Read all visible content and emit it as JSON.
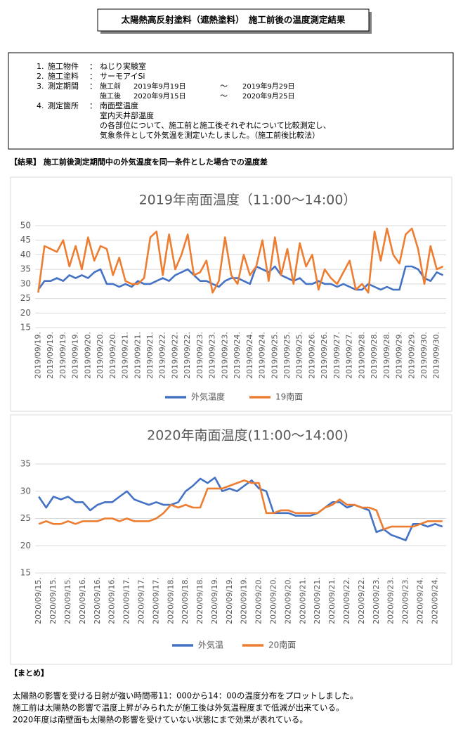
{
  "header": {
    "title": "太陽熱高反射塗料（遮熱塗料）　施工前後の温度測定結果"
  },
  "info": {
    "items": [
      {
        "num": "1.",
        "label": "施工物件",
        "sep": "：",
        "lines": [
          "ねじり実験室"
        ]
      },
      {
        "num": "2.",
        "label": "施工塗料",
        "sep": "：",
        "lines": [
          "サーモアイSi"
        ]
      },
      {
        "num": "3.",
        "label": "測定期間",
        "sep": "：",
        "periods": [
          {
            "label": "施工前",
            "from": "2019年9月19日",
            "sep": "～",
            "to": "2019年9月29日"
          },
          {
            "label": "施工後",
            "from": "2020年9月15日",
            "sep": "～",
            "to": "2020年9月25日"
          }
        ]
      },
      {
        "num": "4.",
        "label": "測定箇所",
        "sep": "：",
        "lines": [
          "南面壁温度",
          "室内天井部温度",
          "の各部位について、施工前と施工後それぞれについて比較測定し、",
          "気象条件として外気温を測定いたしました。（施工前後比較法）"
        ]
      }
    ]
  },
  "result_heading": "【結果】 施工前後測定期間中の外気温度を同一条件とした場合での温度差",
  "chart_data": [
    {
      "type": "line",
      "title": "2019年南面温度（11:00～14:00）",
      "categories": [
        "2019/09/19.",
        null,
        "2019/09/19.",
        null,
        "2019/09/19.",
        null,
        "2019/09/19.",
        null,
        "2019/09/20.",
        null,
        "2019/09/20.",
        null,
        "2019/09/20.",
        null,
        "2019/09/21.",
        null,
        "2019/09/21.",
        null,
        "2019/09/21.",
        null,
        "2019/09/22.",
        null,
        "2019/09/22.",
        null,
        "2019/09/22.",
        null,
        "2019/09/23.",
        null,
        "2019/09/23.",
        null,
        "2019/09/23.",
        null,
        "2019/09/24.",
        null,
        "2019/09/24.",
        null,
        "2019/09/24.",
        null,
        "2019/09/25.",
        null,
        "2019/09/25.",
        null,
        "2019/09/25.",
        null,
        "2019/09/26.",
        null,
        "2019/09/26.",
        null,
        "2019/09/27.",
        null,
        "2019/09/27.",
        null,
        "2019/09/28.",
        null,
        "2019/09/28.",
        null,
        "2019/09/28.",
        null,
        "2019/09/29.",
        null,
        "2019/09/29.",
        null,
        "2019/09/30.",
        null,
        "2019/09/30.",
        null
      ],
      "series": [
        {
          "name": "外気温度",
          "color": "#4472c4",
          "values": [
            28,
            31,
            31,
            32,
            31,
            33,
            32,
            33,
            32,
            34,
            35,
            30,
            30,
            29,
            30,
            29,
            31,
            30,
            30,
            31,
            32,
            31,
            33,
            34,
            35,
            33,
            31,
            31,
            30,
            29,
            31,
            32,
            32,
            31,
            30,
            36,
            35,
            34,
            36,
            33,
            32,
            31,
            32,
            30,
            30,
            31,
            30,
            30,
            29,
            30,
            29,
            28,
            28,
            30,
            29,
            28,
            29,
            28,
            28,
            36,
            36,
            35,
            32,
            31,
            34,
            33
          ]
        },
        {
          "name": "19南面",
          "color": "#ed7d31",
          "values": [
            27,
            43,
            42,
            41,
            45,
            36,
            43,
            35,
            46,
            38,
            43,
            42,
            33,
            39,
            31,
            30,
            30,
            32,
            46,
            48,
            33,
            47,
            35,
            40,
            47,
            33,
            34,
            38,
            27,
            31,
            46,
            33,
            30,
            40,
            33,
            36,
            45,
            31,
            46,
            33,
            42,
            30,
            44,
            36,
            40,
            28,
            35,
            32,
            30,
            34,
            38,
            28,
            30,
            27,
            48,
            38,
            49,
            40,
            37,
            47,
            49,
            42,
            30,
            43,
            35,
            36
          ]
        }
      ],
      "ylim": [
        15,
        50
      ],
      "yticks": [
        15,
        20,
        25,
        30,
        35,
        40,
        45,
        50
      ],
      "grid": true
    },
    {
      "type": "line",
      "title": "2020年南面温度(11:00～14:00)",
      "categories": [
        "2020/09/15.",
        null,
        "2020/09/15.",
        null,
        "2020/09/15.",
        null,
        "2020/09/16.",
        null,
        "2020/09/16.",
        null,
        "2020/09/16.",
        null,
        "2020/09/17.",
        null,
        "2020/09/17.",
        null,
        "2020/09/17.",
        null,
        "2020/09/18.",
        null,
        "2020/09/18.",
        null,
        "2020/09/18.",
        null,
        "2020/09/19.",
        null,
        "2020/09/19.",
        null,
        "2020/09/19.",
        null,
        "2020/09/20.",
        null,
        "2020/09/20.",
        null,
        "2020/09/20.",
        null,
        "2020/09/21.",
        null,
        "2020/09/21.",
        null,
        "2020/09/21.",
        null,
        "2020/09/22.",
        null,
        "2020/09/22.",
        null,
        "2020/09/23.",
        null,
        "2020/09/23.",
        null,
        "2020/09/23.",
        null,
        "2020/09/24.",
        null,
        "2020/09/24.",
        null
      ],
      "series": [
        {
          "name": "外気温",
          "color": "#4472c4",
          "values": [
            29,
            27,
            29,
            28.5,
            29,
            28,
            28,
            26.5,
            27.5,
            28,
            28,
            29,
            30,
            28.5,
            28,
            27.5,
            28,
            27.5,
            27.5,
            28,
            30,
            31,
            32.3,
            31.5,
            32.5,
            30,
            30.5,
            30,
            31,
            32,
            30.5,
            30,
            26,
            26,
            26,
            25.5,
            25.5,
            25.5,
            26,
            27,
            28,
            28,
            27,
            27.5,
            27,
            26.5,
            22.5,
            23,
            22,
            21.5,
            21,
            24,
            24,
            23.5,
            24,
            23.5
          ]
        },
        {
          "name": "20南面",
          "color": "#ed7d31",
          "values": [
            24,
            24.5,
            24,
            24,
            24.5,
            24,
            24.5,
            24.5,
            24.5,
            25,
            25,
            24.5,
            25,
            24.5,
            24.5,
            24.5,
            25,
            26,
            27.5,
            27,
            27.5,
            27,
            27,
            30.5,
            30.5,
            30.5,
            31,
            31.5,
            32,
            31.5,
            31.5,
            26,
            26,
            26.5,
            26.5,
            26,
            26,
            26,
            26,
            27,
            27.5,
            28.5,
            27.5,
            27.5,
            27,
            27,
            26.5,
            23,
            23.5,
            23.5,
            23.5,
            23.5,
            24,
            24.5,
            24.5,
            24.5
          ]
        }
      ],
      "ylim": [
        15,
        35
      ],
      "yticks": [
        15,
        20,
        25,
        30,
        35
      ],
      "grid": true
    }
  ],
  "summary": {
    "heading": "【まとめ】",
    "lines": [
      "太陽熱の影響を受ける日射が強い時間帯11：000から14：00の温度分布をプロットしました。",
      "施工前は太陽熱の影響で温度上昇がみられたが施工後は外気温程度まで低減が出来ている。",
      "2020年度は南壁面も太陽熱の影響を受けていない状態にまで効果が表れている。"
    ]
  }
}
